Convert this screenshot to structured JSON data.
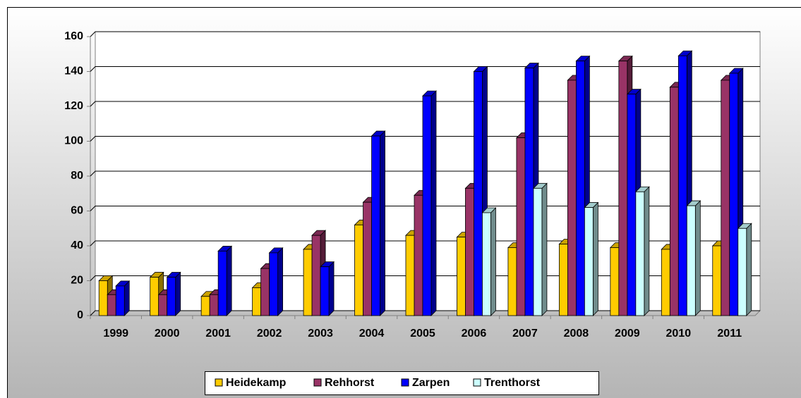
{
  "chart_data": {
    "type": "bar",
    "categories": [
      "1999",
      "2000",
      "2001",
      "2002",
      "2003",
      "2004",
      "2005",
      "2006",
      "2007",
      "2008",
      "2009",
      "2010",
      "2011"
    ],
    "series": [
      {
        "name": "Heidekamp",
        "color": "#FFCC00",
        "values": [
          20,
          22,
          11,
          16,
          38,
          52,
          46,
          45,
          39,
          41,
          39,
          38,
          40
        ]
      },
      {
        "name": "Rehhorst",
        "color": "#993366",
        "values": [
          12,
          12,
          12,
          27,
          46,
          65,
          69,
          73,
          102,
          135,
          146,
          131,
          135
        ]
      },
      {
        "name": "Zarpen",
        "color": "#0000FF",
        "values": [
          17,
          22,
          37,
          36,
          28,
          103,
          126,
          140,
          142,
          146,
          127,
          149,
          139
        ]
      },
      {
        "name": "Trenthorst",
        "color": "#CCFFFF",
        "values": [
          null,
          null,
          null,
          null,
          null,
          null,
          null,
          59,
          73,
          62,
          71,
          63,
          50
        ]
      }
    ],
    "ylim": [
      0,
      160
    ],
    "yticks": [
      0,
      20,
      40,
      60,
      80,
      100,
      120,
      140,
      160
    ],
    "grid": true,
    "legend": "bottom"
  }
}
